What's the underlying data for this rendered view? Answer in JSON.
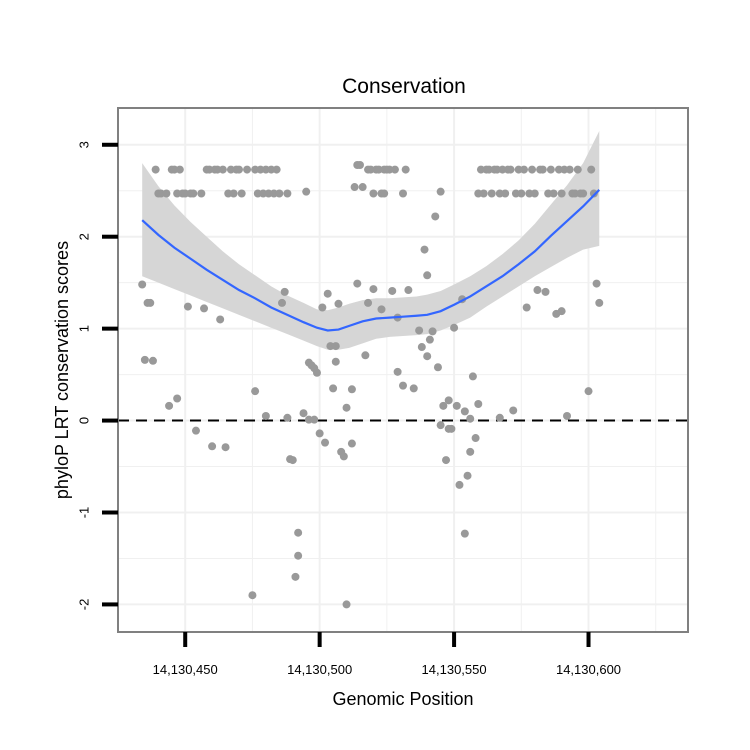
{
  "chart_data": {
    "type": "scatter",
    "title": "Conservation",
    "xlabel": "Genomic Position",
    "ylabel": "phyloP LRT conservation scores",
    "xlim": [
      14130425,
      14130637
    ],
    "ylim": [
      -2.3,
      3.4
    ],
    "x_ticks": [
      14130450,
      14130500,
      14130550,
      14130600
    ],
    "x_tick_labels": [
      "14,130,450",
      "14,130,500",
      "14,130,550",
      "14,130,600"
    ],
    "y_ticks": [
      -2,
      -1,
      0,
      1,
      2,
      3
    ],
    "y_tick_labels": [
      "-2",
      "-1",
      "0",
      "1",
      "2",
      "3"
    ],
    "reference_line": {
      "y": 0,
      "style": "dashed"
    },
    "point_color": "#999999",
    "smooth_color": "#3366ff",
    "band_color": "#d6d6d6",
    "points": [
      [
        14130434,
        1.48
      ],
      [
        14130435,
        0.66
      ],
      [
        14130436,
        1.28
      ],
      [
        14130437,
        1.28
      ],
      [
        14130438,
        0.65
      ],
      [
        14130439,
        2.73
      ],
      [
        14130440,
        2.47
      ],
      [
        14130441,
        2.47
      ],
      [
        14130443,
        2.47
      ],
      [
        14130444,
        0.16
      ],
      [
        14130445,
        2.73
      ],
      [
        14130446,
        2.73
      ],
      [
        14130447,
        2.47
      ],
      [
        14130447,
        0.24
      ],
      [
        14130448,
        2.73
      ],
      [
        14130449,
        2.47
      ],
      [
        14130450,
        2.47
      ],
      [
        14130451,
        1.24
      ],
      [
        14130452,
        2.47
      ],
      [
        14130453,
        2.47
      ],
      [
        14130454,
        -0.11
      ],
      [
        14130456,
        2.47
      ],
      [
        14130457,
        1.22
      ],
      [
        14130458,
        2.73
      ],
      [
        14130459,
        2.73
      ],
      [
        14130460,
        -0.28
      ],
      [
        14130461,
        2.73
      ],
      [
        14130462,
        2.73
      ],
      [
        14130463,
        1.1
      ],
      [
        14130464,
        2.73
      ],
      [
        14130465,
        -0.29
      ],
      [
        14130466,
        2.47
      ],
      [
        14130467,
        2.73
      ],
      [
        14130468,
        2.47
      ],
      [
        14130469,
        2.73
      ],
      [
        14130470,
        2.73
      ],
      [
        14130471,
        2.47
      ],
      [
        14130473,
        2.73
      ],
      [
        14130475,
        -1.9
      ],
      [
        14130476,
        0.32
      ],
      [
        14130476,
        2.73
      ],
      [
        14130477,
        2.47
      ],
      [
        14130478,
        2.73
      ],
      [
        14130479,
        2.47
      ],
      [
        14130480,
        0.05
      ],
      [
        14130480,
        2.73
      ],
      [
        14130481,
        2.47
      ],
      [
        14130482,
        2.73
      ],
      [
        14130483,
        2.47
      ],
      [
        14130484,
        2.73
      ],
      [
        14130485,
        2.47
      ],
      [
        14130486,
        1.28
      ],
      [
        14130487,
        1.4
      ],
      [
        14130488,
        2.47
      ],
      [
        14130488,
        0.03
      ],
      [
        14130489,
        -0.42
      ],
      [
        14130490,
        -0.43
      ],
      [
        14130491,
        -1.7
      ],
      [
        14130492,
        -1.22
      ],
      [
        14130492,
        -1.47
      ],
      [
        14130494,
        0.08
      ],
      [
        14130495,
        2.49
      ],
      [
        14130496,
        0.63
      ],
      [
        14130496,
        0.01
      ],
      [
        14130497,
        0.6
      ],
      [
        14130498,
        0.57
      ],
      [
        14130498,
        0.01
      ],
      [
        14130499,
        0.52
      ],
      [
        14130500,
        -0.14
      ],
      [
        14130501,
        1.23
      ],
      [
        14130502,
        -0.24
      ],
      [
        14130503,
        1.38
      ],
      [
        14130504,
        0.81
      ],
      [
        14130505,
        0.35
      ],
      [
        14130506,
        0.81
      ],
      [
        14130506,
        0.64
      ],
      [
        14130507,
        1.27
      ],
      [
        14130508,
        -0.34
      ],
      [
        14130509,
        -0.39
      ],
      [
        14130510,
        0.14
      ],
      [
        14130510,
        -2.0
      ],
      [
        14130512,
        -0.25
      ],
      [
        14130512,
        0.34
      ],
      [
        14130513,
        2.54
      ],
      [
        14130514,
        1.49
      ],
      [
        14130514,
        2.78
      ],
      [
        14130515,
        2.78
      ],
      [
        14130516,
        2.54
      ],
      [
        14130517,
        0.71
      ],
      [
        14130518,
        1.28
      ],
      [
        14130518,
        2.73
      ],
      [
        14130519,
        2.73
      ],
      [
        14130520,
        2.47
      ],
      [
        14130520,
        1.43
      ],
      [
        14130521,
        2.73
      ],
      [
        14130522,
        2.73
      ],
      [
        14130523,
        2.47
      ],
      [
        14130523,
        1.21
      ],
      [
        14130524,
        2.47
      ],
      [
        14130524,
        2.73
      ],
      [
        14130525,
        2.73
      ],
      [
        14130526,
        2.73
      ],
      [
        14130527,
        1.41
      ],
      [
        14130528,
        2.73
      ],
      [
        14130529,
        0.53
      ],
      [
        14130529,
        1.12
      ],
      [
        14130531,
        2.47
      ],
      [
        14130531,
        0.38
      ],
      [
        14130532,
        2.73
      ],
      [
        14130533,
        1.42
      ],
      [
        14130535,
        0.35
      ],
      [
        14130537,
        0.98
      ],
      [
        14130538,
        0.8
      ],
      [
        14130539,
        1.86
      ],
      [
        14130540,
        1.58
      ],
      [
        14130540,
        0.7
      ],
      [
        14130541,
        0.88
      ],
      [
        14130542,
        0.97
      ],
      [
        14130543,
        2.22
      ],
      [
        14130544,
        0.58
      ],
      [
        14130545,
        2.49
      ],
      [
        14130545,
        -0.05
      ],
      [
        14130546,
        0.16
      ],
      [
        14130547,
        -0.43
      ],
      [
        14130548,
        0.22
      ],
      [
        14130548,
        -0.09
      ],
      [
        14130549,
        -0.09
      ],
      [
        14130550,
        1.01
      ],
      [
        14130551,
        0.16
      ],
      [
        14130552,
        -0.7
      ],
      [
        14130553,
        1.32
      ],
      [
        14130554,
        -1.23
      ],
      [
        14130554,
        0.1
      ],
      [
        14130555,
        -0.6
      ],
      [
        14130556,
        -0.34
      ],
      [
        14130556,
        0.02
      ],
      [
        14130557,
        0.48
      ],
      [
        14130558,
        -0.19
      ],
      [
        14130559,
        0.18
      ],
      [
        14130559,
        2.47
      ],
      [
        14130560,
        2.73
      ],
      [
        14130561,
        2.47
      ],
      [
        14130562,
        2.73
      ],
      [
        14130563,
        2.73
      ],
      [
        14130564,
        2.47
      ],
      [
        14130565,
        2.73
      ],
      [
        14130566,
        2.73
      ],
      [
        14130567,
        0.03
      ],
      [
        14130567,
        2.47
      ],
      [
        14130568,
        2.73
      ],
      [
        14130569,
        2.47
      ],
      [
        14130570,
        2.73
      ],
      [
        14130571,
        2.73
      ],
      [
        14130572,
        0.11
      ],
      [
        14130573,
        2.47
      ],
      [
        14130574,
        2.73
      ],
      [
        14130575,
        2.47
      ],
      [
        14130576,
        2.73
      ],
      [
        14130577,
        1.23
      ],
      [
        14130578,
        2.47
      ],
      [
        14130579,
        2.73
      ],
      [
        14130580,
        2.47
      ],
      [
        14130581,
        1.42
      ],
      [
        14130582,
        2.73
      ],
      [
        14130583,
        2.73
      ],
      [
        14130584,
        1.4
      ],
      [
        14130585,
        2.47
      ],
      [
        14130586,
        2.73
      ],
      [
        14130587,
        2.47
      ],
      [
        14130588,
        1.16
      ],
      [
        14130589,
        2.73
      ],
      [
        14130590,
        1.19
      ],
      [
        14130590,
        2.47
      ],
      [
        14130591,
        2.73
      ],
      [
        14130592,
        0.05
      ],
      [
        14130593,
        2.73
      ],
      [
        14130594,
        2.47
      ],
      [
        14130595,
        2.47
      ],
      [
        14130596,
        2.73
      ],
      [
        14130597,
        2.47
      ],
      [
        14130598,
        2.47
      ],
      [
        14130600,
        0.32
      ],
      [
        14130601,
        2.73
      ],
      [
        14130602,
        2.47
      ],
      [
        14130603,
        1.49
      ],
      [
        14130604,
        1.28
      ]
    ],
    "smooth_line": [
      [
        14130434,
        2.18
      ],
      [
        14130440,
        2.02
      ],
      [
        14130446,
        1.88
      ],
      [
        14130452,
        1.76
      ],
      [
        14130458,
        1.64
      ],
      [
        14130464,
        1.53
      ],
      [
        14130470,
        1.42
      ],
      [
        14130476,
        1.33
      ],
      [
        14130482,
        1.23
      ],
      [
        14130488,
        1.15
      ],
      [
        14130494,
        1.07
      ],
      [
        14130499,
        1.01
      ],
      [
        14130503,
        0.98
      ],
      [
        14130507,
        0.99
      ],
      [
        14130511,
        1.03
      ],
      [
        14130516,
        1.08
      ],
      [
        14130521,
        1.11
      ],
      [
        14130526,
        1.12
      ],
      [
        14130531,
        1.13
      ],
      [
        14130536,
        1.14
      ],
      [
        14130540,
        1.15
      ],
      [
        14130545,
        1.19
      ],
      [
        14130550,
        1.26
      ],
      [
        14130556,
        1.35
      ],
      [
        14130562,
        1.46
      ],
      [
        14130568,
        1.57
      ],
      [
        14130574,
        1.7
      ],
      [
        14130580,
        1.84
      ],
      [
        14130586,
        2.01
      ],
      [
        14130592,
        2.17
      ],
      [
        14130598,
        2.33
      ],
      [
        14130604,
        2.51
      ]
    ],
    "band_upper": [
      [
        14130434,
        2.8
      ],
      [
        14130440,
        2.55
      ],
      [
        14130446,
        2.34
      ],
      [
        14130452,
        2.16
      ],
      [
        14130458,
        2.0
      ],
      [
        14130464,
        1.84
      ],
      [
        14130470,
        1.7
      ],
      [
        14130476,
        1.58
      ],
      [
        14130482,
        1.46
      ],
      [
        14130488,
        1.36
      ],
      [
        14130494,
        1.28
      ],
      [
        14130499,
        1.21
      ],
      [
        14130503,
        1.2
      ],
      [
        14130507,
        1.23
      ],
      [
        14130511,
        1.27
      ],
      [
        14130516,
        1.31
      ],
      [
        14130521,
        1.33
      ],
      [
        14130526,
        1.33
      ],
      [
        14130531,
        1.34
      ],
      [
        14130536,
        1.35
      ],
      [
        14130540,
        1.37
      ],
      [
        14130545,
        1.41
      ],
      [
        14130550,
        1.48
      ],
      [
        14130556,
        1.57
      ],
      [
        14130562,
        1.68
      ],
      [
        14130568,
        1.81
      ],
      [
        14130574,
        1.96
      ],
      [
        14130580,
        2.14
      ],
      [
        14130586,
        2.35
      ],
      [
        14130592,
        2.56
      ],
      [
        14130598,
        2.8
      ],
      [
        14130604,
        3.15
      ]
    ],
    "band_lower": [
      [
        14130434,
        1.57
      ],
      [
        14130440,
        1.5
      ],
      [
        14130446,
        1.43
      ],
      [
        14130452,
        1.36
      ],
      [
        14130458,
        1.29
      ],
      [
        14130464,
        1.22
      ],
      [
        14130470,
        1.15
      ],
      [
        14130476,
        1.08
      ],
      [
        14130482,
        1.01
      ],
      [
        14130488,
        0.94
      ],
      [
        14130494,
        0.87
      ],
      [
        14130499,
        0.81
      ],
      [
        14130503,
        0.77
      ],
      [
        14130507,
        0.77
      ],
      [
        14130511,
        0.79
      ],
      [
        14130516,
        0.84
      ],
      [
        14130521,
        0.89
      ],
      [
        14130526,
        0.91
      ],
      [
        14130531,
        0.92
      ],
      [
        14130536,
        0.93
      ],
      [
        14130540,
        0.94
      ],
      [
        14130545,
        0.98
      ],
      [
        14130550,
        1.04
      ],
      [
        14130556,
        1.12
      ],
      [
        14130562,
        1.24
      ],
      [
        14130568,
        1.35
      ],
      [
        14130574,
        1.46
      ],
      [
        14130580,
        1.57
      ],
      [
        14130586,
        1.67
      ],
      [
        14130592,
        1.77
      ],
      [
        14130598,
        1.86
      ],
      [
        14130604,
        1.9
      ]
    ]
  }
}
